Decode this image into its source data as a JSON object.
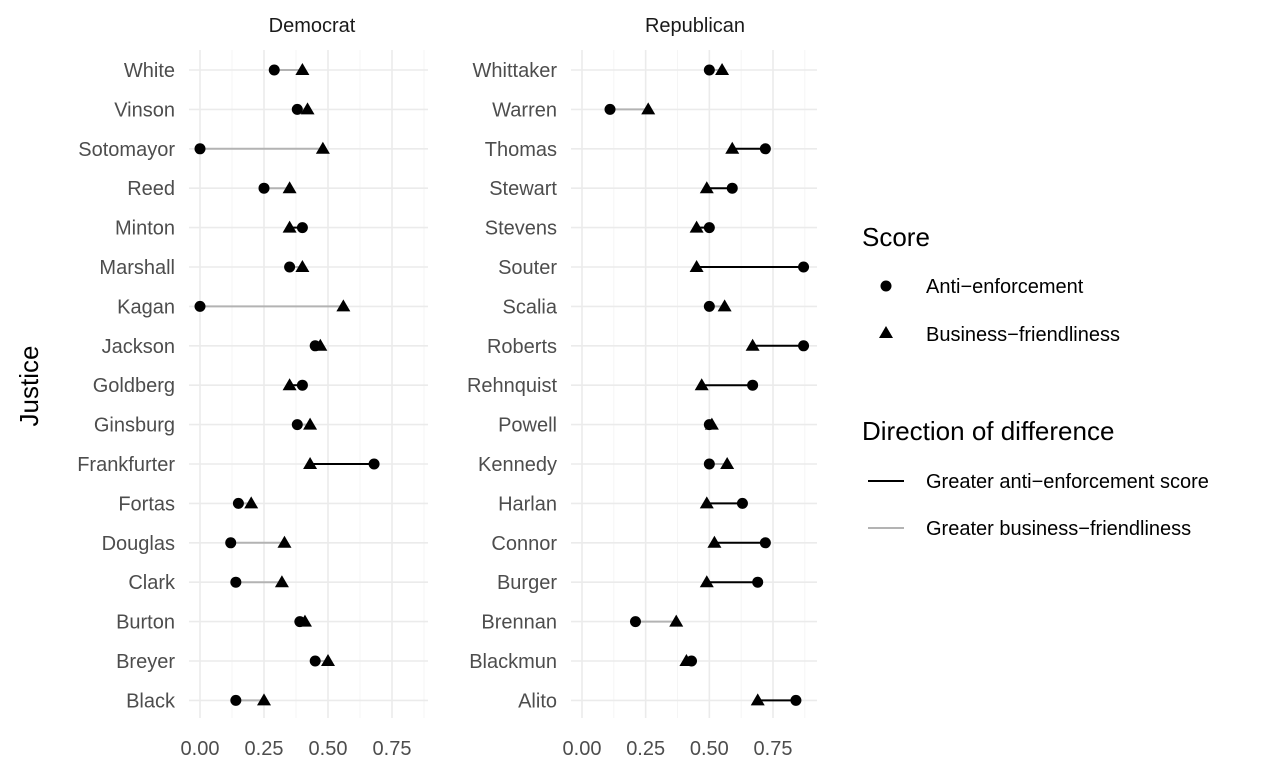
{
  "chart_data": {
    "type": "dot-plot",
    "ylabel": "Justice",
    "xlim": [
      0,
      0.9
    ],
    "xticks": [
      "0.00",
      "0.25",
      "0.50",
      "0.75"
    ],
    "xtick_values": [
      0,
      0.25,
      0.5,
      0.75
    ],
    "panels": [
      {
        "name": "Democrat",
        "justices": [
          "White",
          "Vinson",
          "Sotomayor",
          "Reed",
          "Minton",
          "Marshall",
          "Kagan",
          "Jackson",
          "Goldberg",
          "Ginsburg",
          "Frankfurter",
          "Fortas",
          "Douglas",
          "Clark",
          "Burton",
          "Breyer",
          "Black"
        ],
        "anti_enforcement": [
          0.29,
          0.38,
          0.0,
          0.25,
          0.4,
          0.35,
          0.0,
          0.45,
          0.4,
          0.38,
          0.68,
          0.15,
          0.12,
          0.14,
          0.39,
          0.45,
          0.14
        ],
        "business_friendliness": [
          0.4,
          0.42,
          0.48,
          0.35,
          0.35,
          0.4,
          0.56,
          0.47,
          0.35,
          0.43,
          0.43,
          0.2,
          0.33,
          0.32,
          0.41,
          0.5,
          0.25
        ]
      },
      {
        "name": "Republican",
        "justices": [
          "Whittaker",
          "Warren",
          "Thomas",
          "Stewart",
          "Stevens",
          "Souter",
          "Scalia",
          "Roberts",
          "Rehnquist",
          "Powell",
          "Kennedy",
          "Harlan",
          "Connor",
          "Burger",
          "Brennan",
          "Blackmun",
          "Alito"
        ],
        "anti_enforcement": [
          0.5,
          0.11,
          0.72,
          0.59,
          0.5,
          0.87,
          0.5,
          0.87,
          0.67,
          0.5,
          0.5,
          0.63,
          0.72,
          0.69,
          0.21,
          0.43,
          0.84
        ],
        "business_friendliness": [
          0.55,
          0.26,
          0.59,
          0.49,
          0.45,
          0.45,
          0.56,
          0.67,
          0.47,
          0.51,
          0.57,
          0.49,
          0.52,
          0.49,
          0.37,
          0.41,
          0.69
        ]
      }
    ],
    "legend": {
      "score_title": "Score",
      "score_items": [
        {
          "label": "Anti−enforcement",
          "shape": "circle"
        },
        {
          "label": "Business−friendliness",
          "shape": "triangle"
        }
      ],
      "direction_title": "Direction of difference",
      "direction_items": [
        {
          "label": "Greater anti−enforcement score",
          "color": "#000000"
        },
        {
          "label": "Greater business−friendliness",
          "color": "#b3b3b3"
        }
      ],
      "placement": "right"
    },
    "colors": {
      "dark_segment": "#000000",
      "light_segment": "#b3b3b3",
      "points": "#000000",
      "grid": "#ebebeb"
    }
  }
}
